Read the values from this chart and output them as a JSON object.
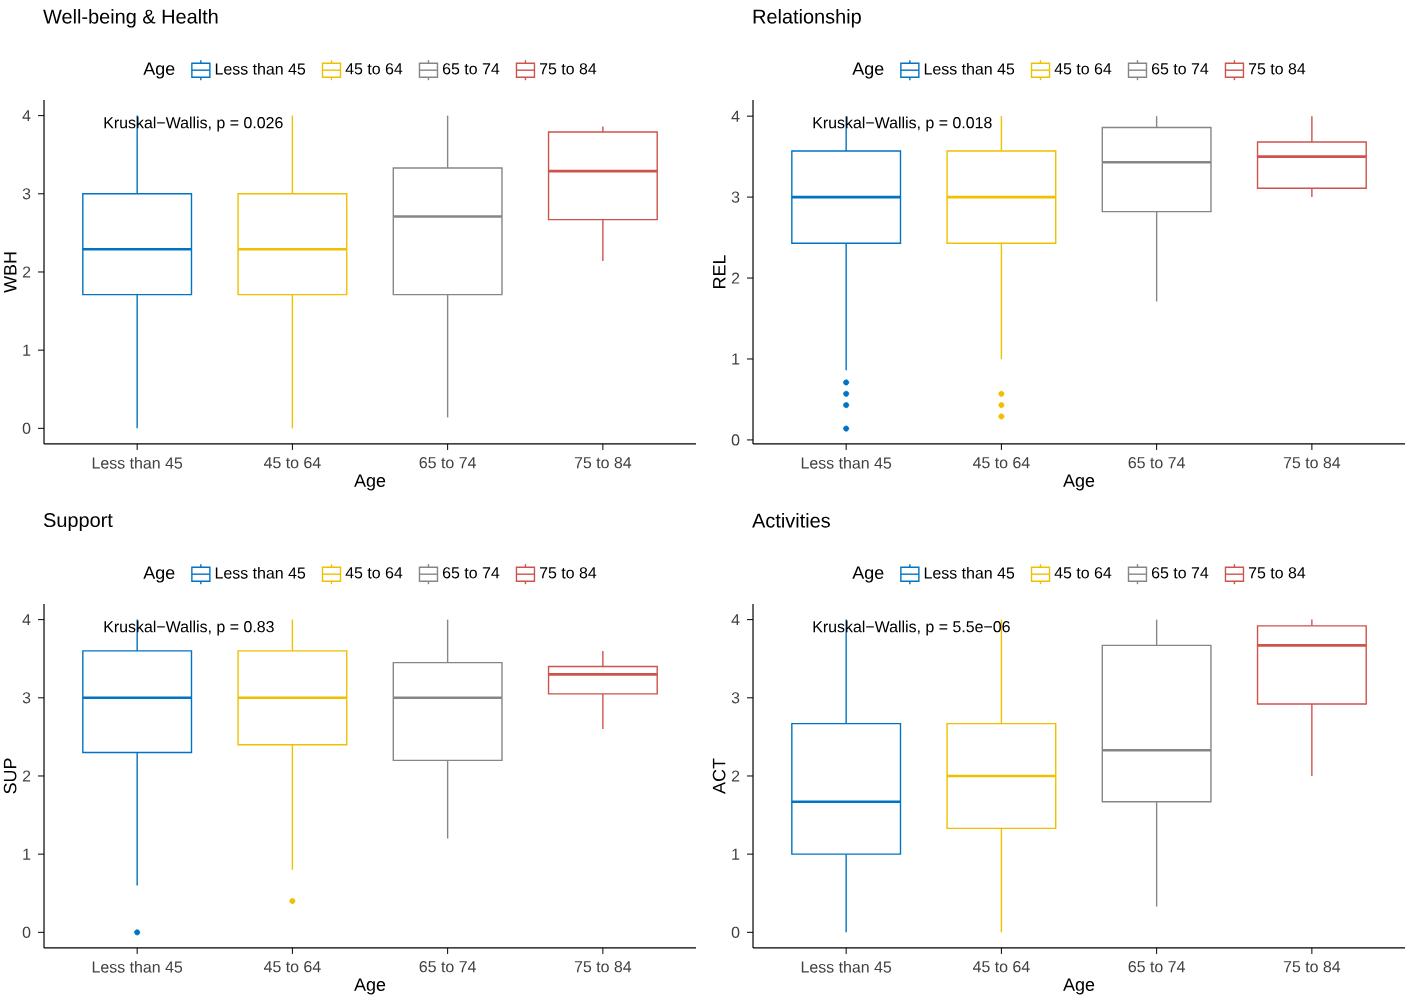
{
  "chart_data": [
    {
      "type": "box",
      "title": "Well-being & Health",
      "xlabel": "Age",
      "ylabel": "WBH",
      "legend_title": "Age",
      "legend": "top",
      "grid": false,
      "categories": [
        "Less than 45",
        "45 to 64",
        "65 to 74",
        "75 to 84"
      ],
      "ylim": [
        -0.2,
        4.2
      ],
      "yticks": [
        0,
        1,
        2,
        3,
        4
      ],
      "series": [
        {
          "name": "Less than 45",
          "color": "#0073C2",
          "boxes": [
            {
              "low": 0,
              "q1": 1.71,
              "median": 2.29,
              "q3": 3,
              "high": 4
            },
            null,
            null,
            null
          ]
        },
        {
          "name": "45 to 64",
          "color": "#EFC000",
          "boxes": [
            null,
            {
              "low": 0,
              "q1": 1.71,
              "median": 2.29,
              "q3": 3,
              "high": 4
            },
            null,
            null
          ]
        },
        {
          "name": "65 to 74",
          "color": "#868686",
          "boxes": [
            null,
            null,
            {
              "low": 0.14,
              "q1": 1.71,
              "median": 2.71,
              "q3": 3.33,
              "high": 4
            },
            null
          ]
        },
        {
          "name": "75 to 84",
          "color": "#CD534C",
          "boxes": [
            null,
            null,
            null,
            {
              "low": 2.14,
              "q1": 2.67,
              "median": 3.29,
              "q3": 3.79,
              "high": 3.86
            }
          ]
        }
      ],
      "annotations": [
        "Kruskal−Wallis, p = 0.026"
      ]
    },
    {
      "type": "box",
      "title": "Relationship",
      "xlabel": "Age",
      "ylabel": "REL",
      "legend_title": "Age",
      "legend": "top",
      "grid": false,
      "categories": [
        "Less than 45",
        "45 to 64",
        "65 to 74",
        "75 to 84"
      ],
      "ylim": [
        -0.05,
        4.2
      ],
      "yticks": [
        0,
        1,
        2,
        3,
        4
      ],
      "series": [
        {
          "name": "Less than 45",
          "color": "#0073C2",
          "boxes": [
            {
              "low": 0.86,
              "q1": 2.43,
              "median": 3,
              "q3": 3.57,
              "high": 4,
              "outliers": [
                0.71,
                0.57,
                0.43,
                0.14
              ]
            },
            null,
            null,
            null
          ]
        },
        {
          "name": "45 to 64",
          "color": "#EFC000",
          "boxes": [
            null,
            {
              "low": 1.0,
              "q1": 2.43,
              "median": 3,
              "q3": 3.57,
              "high": 4,
              "outliers": [
                0.57,
                0.43,
                0.29
              ]
            },
            null,
            null
          ]
        },
        {
          "name": "65 to 74",
          "color": "#868686",
          "boxes": [
            null,
            null,
            {
              "low": 1.71,
              "q1": 2.82,
              "median": 3.43,
              "q3": 3.86,
              "high": 4
            },
            null
          ]
        },
        {
          "name": "75 to 84",
          "color": "#CD534C",
          "boxes": [
            null,
            null,
            null,
            {
              "low": 3.0,
              "q1": 3.11,
              "median": 3.5,
              "q3": 3.68,
              "high": 4
            }
          ]
        }
      ],
      "annotations": [
        "Kruskal−Wallis, p = 0.018"
      ]
    },
    {
      "type": "box",
      "title": "Support",
      "xlabel": "Age",
      "ylabel": "SUP",
      "legend_title": "Age",
      "legend": "top",
      "grid": false,
      "categories": [
        "Less than 45",
        "45 to 64",
        "65 to 74",
        "75 to 84"
      ],
      "ylim": [
        -0.2,
        4.2
      ],
      "yticks": [
        0,
        1,
        2,
        3,
        4
      ],
      "series": [
        {
          "name": "Less than 45",
          "color": "#0073C2",
          "boxes": [
            {
              "low": 0.6,
              "q1": 2.3,
              "median": 3,
              "q3": 3.6,
              "high": 4,
              "outliers": [
                0
              ]
            },
            null,
            null,
            null
          ]
        },
        {
          "name": "45 to 64",
          "color": "#EFC000",
          "boxes": [
            null,
            {
              "low": 0.8,
              "q1": 2.4,
              "median": 3,
              "q3": 3.6,
              "high": 4,
              "outliers": [
                0.4
              ]
            },
            null,
            null
          ]
        },
        {
          "name": "65 to 74",
          "color": "#868686",
          "boxes": [
            null,
            null,
            {
              "low": 1.2,
              "q1": 2.2,
              "median": 3,
              "q3": 3.45,
              "high": 4
            },
            null
          ]
        },
        {
          "name": "75 to 84",
          "color": "#CD534C",
          "boxes": [
            null,
            null,
            null,
            {
              "low": 2.6,
              "q1": 3.05,
              "median": 3.3,
              "q3": 3.4,
              "high": 3.6
            }
          ]
        }
      ],
      "annotations": [
        "Kruskal−Wallis, p = 0.83"
      ]
    },
    {
      "type": "box",
      "title": "Activities",
      "xlabel": "Age",
      "ylabel": "ACT",
      "legend_title": "Age",
      "legend": "top",
      "grid": false,
      "categories": [
        "Less than 45",
        "45 to 64",
        "65 to 74",
        "75 to 84"
      ],
      "ylim": [
        -0.2,
        4.2
      ],
      "yticks": [
        0,
        1,
        2,
        3,
        4
      ],
      "series": [
        {
          "name": "Less than 45",
          "color": "#0073C2",
          "boxes": [
            {
              "low": 0,
              "q1": 1,
              "median": 1.67,
              "q3": 2.67,
              "high": 4
            },
            null,
            null,
            null
          ]
        },
        {
          "name": "45 to 64",
          "color": "#EFC000",
          "boxes": [
            null,
            {
              "low": 0,
              "q1": 1.33,
              "median": 2,
              "q3": 2.67,
              "high": 4
            },
            null,
            null
          ]
        },
        {
          "name": "65 to 74",
          "color": "#868686",
          "boxes": [
            null,
            null,
            {
              "low": 0.33,
              "q1": 1.67,
              "median": 2.33,
              "q3": 3.67,
              "high": 4
            },
            null
          ]
        },
        {
          "name": "75 to 84",
          "color": "#CD534C",
          "boxes": [
            null,
            null,
            null,
            {
              "low": 2,
              "q1": 2.92,
              "median": 3.67,
              "q3": 3.92,
              "high": 4
            }
          ]
        }
      ],
      "annotations": [
        "Kruskal−Wallis, p = 5.5e−06"
      ]
    }
  ]
}
